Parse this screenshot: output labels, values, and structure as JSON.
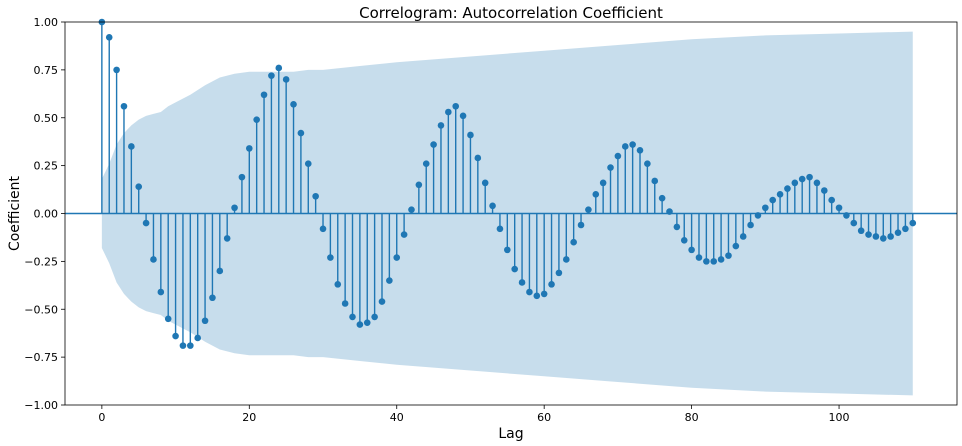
{
  "chart_data": {
    "type": "line",
    "title": "Correlogram: Autocorrelation Coefficient",
    "xlabel": "Lag",
    "ylabel": "Coefficient",
    "xlim": [
      -5,
      116
    ],
    "ylim": [
      -1.0,
      1.0
    ],
    "x_ticks": [
      0,
      20,
      40,
      60,
      80,
      100
    ],
    "y_ticks": [
      -1.0,
      -0.75,
      -0.5,
      -0.25,
      0.0,
      0.25,
      0.5,
      0.75,
      1.0
    ],
    "x_tick_labels": [
      "0",
      "20",
      "40",
      "60",
      "80",
      "100"
    ],
    "y_tick_labels": [
      "−1.00",
      "−0.75",
      "−0.50",
      "−0.25",
      "0.00",
      "0.25",
      "0.50",
      "0.75",
      "1.00"
    ],
    "grid": false,
    "colors": {
      "stem": "#1f77b4",
      "confidence_band": "#1f77b4",
      "zero_line": "#1f77b4"
    },
    "series": [
      {
        "type": "stem",
        "x": [
          0,
          1,
          2,
          3,
          4,
          5,
          6,
          7,
          8,
          9,
          10,
          11,
          12,
          13,
          14,
          15,
          16,
          17,
          18,
          19,
          20,
          21,
          22,
          23,
          24,
          25,
          26,
          27,
          28,
          29,
          30,
          31,
          32,
          33,
          34,
          35,
          36,
          37,
          38,
          39,
          40,
          41,
          42,
          43,
          44,
          45,
          46,
          47,
          48,
          49,
          50,
          51,
          52,
          53,
          54,
          55,
          56,
          57,
          58,
          59,
          60,
          61,
          62,
          63,
          64,
          65,
          66,
          67,
          68,
          69,
          70,
          71,
          72,
          73,
          74,
          75,
          76,
          77,
          78,
          79,
          80,
          81,
          82,
          83,
          84,
          85,
          86,
          87,
          88,
          89,
          90,
          91,
          92,
          93,
          94,
          95,
          96,
          97,
          98,
          99,
          100,
          101,
          102,
          103,
          104,
          105,
          106,
          107,
          108,
          109,
          110
        ],
        "values": [
          1.0,
          0.92,
          0.75,
          0.56,
          0.35,
          0.14,
          -0.05,
          -0.24,
          -0.41,
          -0.55,
          -0.64,
          -0.69,
          -0.69,
          -0.65,
          -0.56,
          -0.44,
          -0.3,
          -0.13,
          0.03,
          0.19,
          0.34,
          0.49,
          0.62,
          0.72,
          0.76,
          0.7,
          0.57,
          0.42,
          0.26,
          0.09,
          -0.08,
          -0.23,
          -0.37,
          -0.47,
          -0.54,
          -0.58,
          -0.57,
          -0.54,
          -0.46,
          -0.35,
          -0.23,
          -0.11,
          0.02,
          0.15,
          0.26,
          0.36,
          0.46,
          0.53,
          0.56,
          0.51,
          0.41,
          0.29,
          0.16,
          0.04,
          -0.08,
          -0.19,
          -0.29,
          -0.36,
          -0.41,
          -0.43,
          -0.42,
          -0.37,
          -0.31,
          -0.24,
          -0.15,
          -0.06,
          0.02,
          0.1,
          0.16,
          0.24,
          0.3,
          0.35,
          0.36,
          0.33,
          0.26,
          0.17,
          0.08,
          0.01,
          -0.07,
          -0.14,
          -0.19,
          -0.23,
          -0.25,
          -0.25,
          -0.24,
          -0.22,
          -0.17,
          -0.12,
          -0.06,
          -0.01,
          0.03,
          0.07,
          0.1,
          0.13,
          0.16,
          0.18,
          0.19,
          0.16,
          0.12,
          0.07,
          0.03,
          -0.01,
          -0.05,
          -0.09,
          -0.11,
          -0.12,
          -0.13,
          -0.12,
          -0.1,
          -0.08,
          -0.05
        ]
      },
      {
        "type": "band",
        "x": [
          0,
          1,
          2,
          3,
          4,
          5,
          6,
          7,
          8,
          9,
          10,
          12,
          14,
          16,
          18,
          20,
          22,
          24,
          26,
          28,
          30,
          35,
          40,
          50,
          60,
          70,
          80,
          90,
          100,
          110
        ],
        "upper": [
          0.18,
          0.26,
          0.36,
          0.42,
          0.46,
          0.49,
          0.51,
          0.52,
          0.53,
          0.56,
          0.58,
          0.62,
          0.67,
          0.71,
          0.73,
          0.74,
          0.74,
          0.74,
          0.74,
          0.75,
          0.75,
          0.77,
          0.79,
          0.82,
          0.85,
          0.88,
          0.91,
          0.93,
          0.94,
          0.95
        ],
        "lower": [
          -0.18,
          -0.26,
          -0.36,
          -0.42,
          -0.46,
          -0.49,
          -0.51,
          -0.52,
          -0.53,
          -0.56,
          -0.58,
          -0.62,
          -0.67,
          -0.71,
          -0.73,
          -0.74,
          -0.74,
          -0.74,
          -0.74,
          -0.75,
          -0.75,
          -0.77,
          -0.79,
          -0.82,
          -0.85,
          -0.88,
          -0.91,
          -0.93,
          -0.94,
          -0.95
        ]
      }
    ]
  }
}
